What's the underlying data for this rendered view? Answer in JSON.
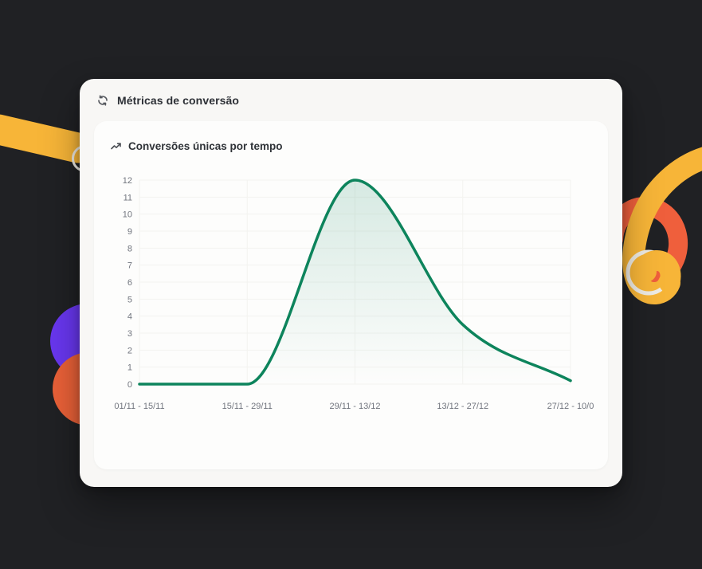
{
  "window": {
    "background_color": "#202124"
  },
  "metrics_card": {
    "title": "Métricas de conversão",
    "background": "#f8f7f5",
    "title_color": "#2d3036",
    "icon": "refresh-icon",
    "icon_color": "#55585e"
  },
  "chart_card": {
    "title": "Conversões únicas por tempo",
    "background": "#fdfdfc",
    "icon": "trend-up-icon",
    "icon_color": "#4a4e54"
  },
  "chart_data": {
    "type": "area",
    "title": "Conversões únicas por tempo",
    "categories": [
      "01/11 - 15/11",
      "15/11 - 29/11",
      "29/11 - 13/12",
      "13/12 - 27/12",
      "27/12 - 10/0"
    ],
    "values": [
      0,
      0,
      12,
      3.5,
      0.2
    ],
    "y_ticks": [
      0,
      1,
      2,
      3,
      4,
      5,
      6,
      7,
      8,
      9,
      10,
      11,
      12
    ],
    "ylim": [
      0,
      12
    ],
    "xlabel": "",
    "ylabel": "",
    "grid": true,
    "legend": false,
    "smooth": true,
    "line_color": "#0d845c",
    "line_width": 3.5,
    "area_top_color": "rgba(13,132,92,0.16)",
    "area_bottom_color": "rgba(13,132,92,0)",
    "axis_label_color": "#71757e",
    "axis_font_size": 11,
    "gridline_color": "#f3f3f0"
  },
  "decorations": {
    "yellow": "#f7b538",
    "orange_red": "#ea6138",
    "swirl_red": "#ef5f3c",
    "purple": "#6937f0",
    "ring_white": "#eeebe4"
  }
}
